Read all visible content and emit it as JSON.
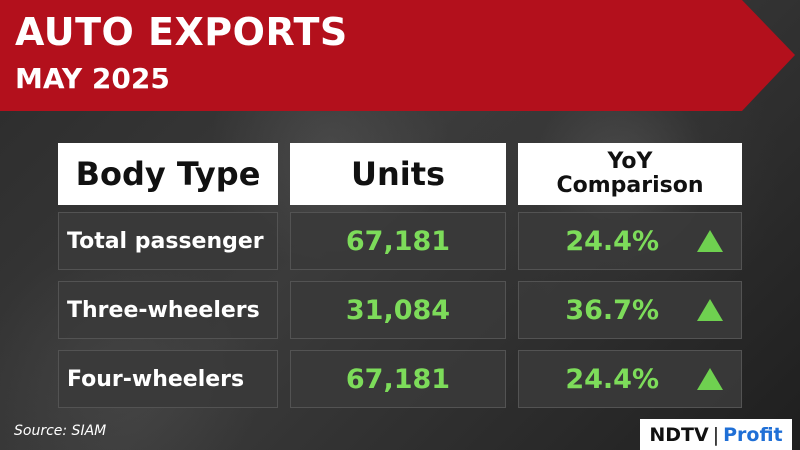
{
  "header": {
    "title": "AUTO EXPORTS",
    "subtitle": "MAY 2025"
  },
  "table": {
    "columns": [
      "Body Type",
      "Units",
      "YoY Comparison"
    ],
    "rows": [
      [
        "Total passenger",
        "67,181",
        "24.4%"
      ],
      [
        "Three-wheelers",
        "31,084",
        "36.7%"
      ],
      [
        "Four-wheelers",
        "67,181",
        "24.4%"
      ]
    ]
  },
  "footer": {
    "source": "Source: SIAM",
    "logo": [
      "NDTV",
      "Profit"
    ]
  }
}
